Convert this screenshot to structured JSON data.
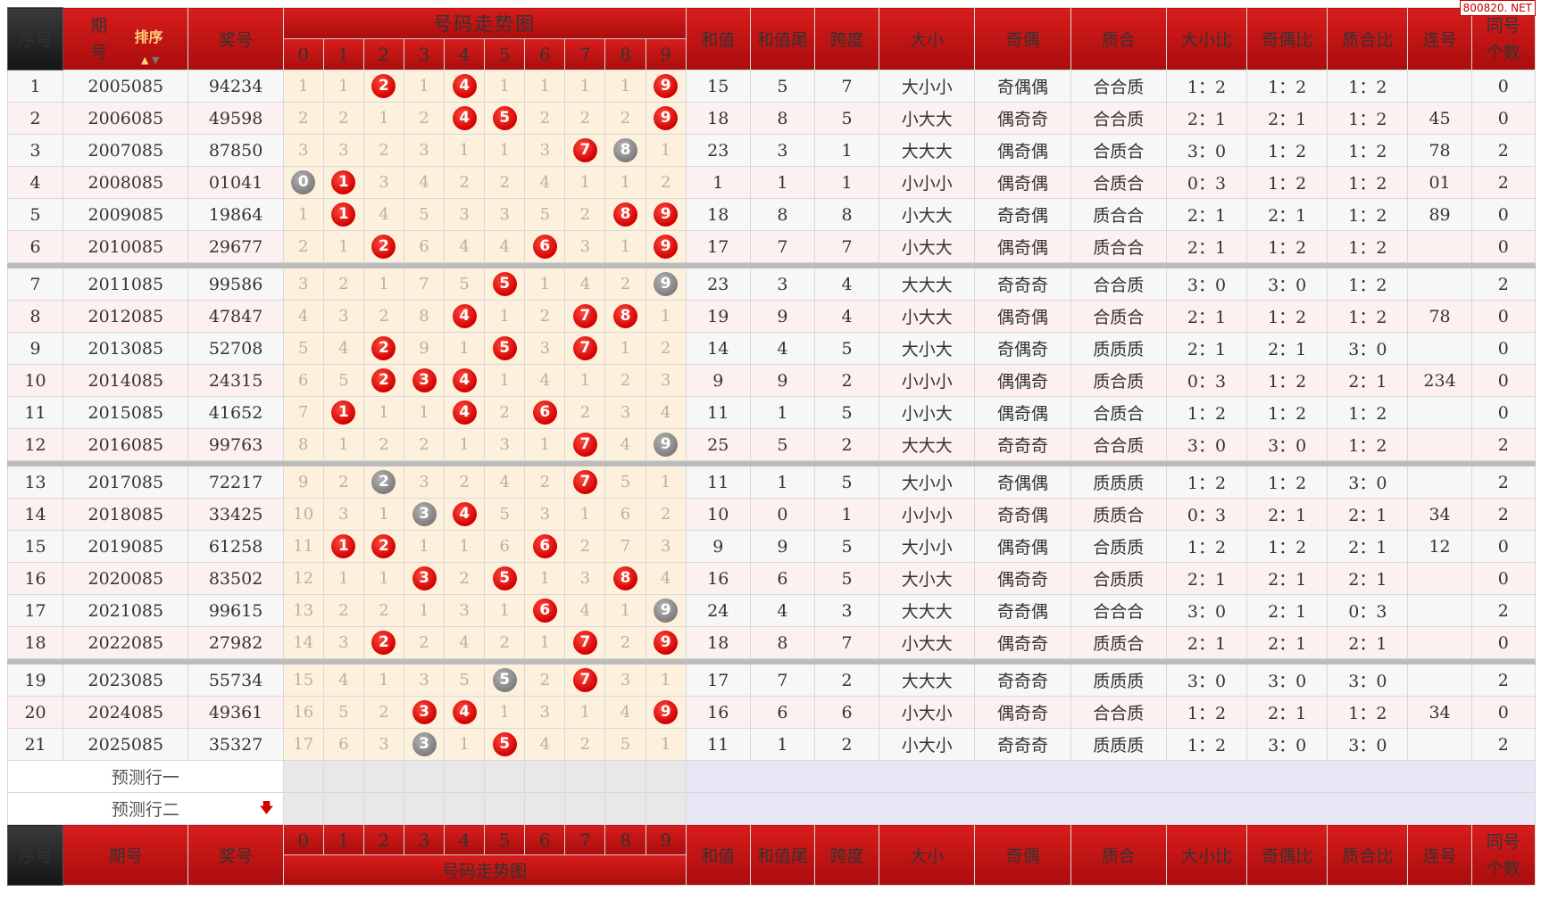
{
  "watermark": "800820. NET",
  "header": {
    "col_index": "序号",
    "col_issue_line1": "期",
    "col_issue_line2": "号",
    "sort_label": "排序",
    "col_prize": "奖号",
    "trend_title": "号码走势图",
    "digits": [
      "0",
      "1",
      "2",
      "3",
      "4",
      "5",
      "6",
      "7",
      "8",
      "9"
    ],
    "col_sum": "和值",
    "col_sum_tail": "和值尾",
    "col_span": "跨度",
    "col_size": "大小",
    "col_oddeven": "奇偶",
    "col_primecomp": "质合",
    "col_size_ratio": "大小比",
    "col_oddeven_ratio": "奇偶比",
    "col_primecomp_ratio": "质合比",
    "col_consecutive": "连号",
    "col_same_line1": "同号",
    "col_same_line2": "个数"
  },
  "footer": {
    "col_index": "序号",
    "col_issue": "期号",
    "col_prize": "奖号",
    "trend_title": "号码走势图"
  },
  "rows": [
    {
      "idx": "1",
      "issue": "2005085",
      "prize": "94234",
      "cells": [
        "1",
        "1",
        "2",
        "1",
        "4",
        "1",
        "1",
        "1",
        "1",
        "9"
      ],
      "hits": [
        {
          "d": 2,
          "c": "red"
        },
        {
          "d": 4,
          "c": "red"
        },
        {
          "d": 9,
          "c": "red"
        }
      ],
      "sum": "15",
      "tail": "5",
      "span": "7",
      "size": "大小小",
      "oe": "奇偶偶",
      "pc": "合合质",
      "sr": "1：2",
      "oer": "1：2",
      "pcr": "1：2",
      "cons": "",
      "same": "0"
    },
    {
      "idx": "2",
      "issue": "2006085",
      "prize": "49598",
      "cells": [
        "2",
        "2",
        "1",
        "2",
        "4",
        "5",
        "2",
        "2",
        "2",
        "9"
      ],
      "hits": [
        {
          "d": 4,
          "c": "red"
        },
        {
          "d": 5,
          "c": "red"
        },
        {
          "d": 9,
          "c": "red"
        }
      ],
      "sum": "18",
      "tail": "8",
      "span": "5",
      "size": "小大大",
      "oe": "偶奇奇",
      "pc": "合合质",
      "sr": "2：1",
      "oer": "2：1",
      "pcr": "1：2",
      "cons": "45",
      "same": "0"
    },
    {
      "idx": "3",
      "issue": "2007085",
      "prize": "87850",
      "cells": [
        "3",
        "3",
        "2",
        "3",
        "1",
        "1",
        "3",
        "7",
        "8",
        "1"
      ],
      "hits": [
        {
          "d": 7,
          "c": "red"
        },
        {
          "d": 8,
          "c": "gray"
        }
      ],
      "sum": "23",
      "tail": "3",
      "span": "1",
      "size": "大大大",
      "oe": "偶奇偶",
      "pc": "合质合",
      "sr": "3：0",
      "oer": "1：2",
      "pcr": "1：2",
      "cons": "78",
      "same": "2"
    },
    {
      "idx": "4",
      "issue": "2008085",
      "prize": "01041",
      "cells": [
        "0",
        "1",
        "3",
        "4",
        "2",
        "2",
        "4",
        "1",
        "1",
        "2"
      ],
      "hits": [
        {
          "d": 0,
          "c": "gray"
        },
        {
          "d": 1,
          "c": "red"
        }
      ],
      "sum": "1",
      "tail": "1",
      "span": "1",
      "size": "小小小",
      "oe": "偶奇偶",
      "pc": "合质合",
      "sr": "0：3",
      "oer": "1：2",
      "pcr": "1：2",
      "cons": "01",
      "same": "2"
    },
    {
      "idx": "5",
      "issue": "2009085",
      "prize": "19864",
      "cells": [
        "1",
        "1",
        "4",
        "5",
        "3",
        "3",
        "5",
        "2",
        "8",
        "9"
      ],
      "hits": [
        {
          "d": 1,
          "c": "red"
        },
        {
          "d": 8,
          "c": "red"
        },
        {
          "d": 9,
          "c": "red"
        }
      ],
      "sum": "18",
      "tail": "8",
      "span": "8",
      "size": "小大大",
      "oe": "奇奇偶",
      "pc": "质合合",
      "sr": "2：1",
      "oer": "2：1",
      "pcr": "1：2",
      "cons": "89",
      "same": "0"
    },
    {
      "idx": "6",
      "issue": "2010085",
      "prize": "29677",
      "cells": [
        "2",
        "1",
        "2",
        "6",
        "4",
        "4",
        "6",
        "3",
        "1",
        "9"
      ],
      "hits": [
        {
          "d": 2,
          "c": "red"
        },
        {
          "d": 6,
          "c": "red"
        },
        {
          "d": 9,
          "c": "red"
        }
      ],
      "sum": "17",
      "tail": "7",
      "span": "7",
      "size": "小大大",
      "oe": "偶奇偶",
      "pc": "质合合",
      "sr": "2：1",
      "oer": "1：2",
      "pcr": "1：2",
      "cons": "",
      "same": "0"
    },
    {
      "idx": "7",
      "issue": "2011085",
      "prize": "99586",
      "cells": [
        "3",
        "2",
        "1",
        "7",
        "5",
        "5",
        "1",
        "4",
        "2",
        "9"
      ],
      "hits": [
        {
          "d": 5,
          "c": "red"
        },
        {
          "d": 9,
          "c": "gray"
        }
      ],
      "sum": "23",
      "tail": "3",
      "span": "4",
      "size": "大大大",
      "oe": "奇奇奇",
      "pc": "合合质",
      "sr": "3：0",
      "oer": "3：0",
      "pcr": "1：2",
      "cons": "",
      "same": "2"
    },
    {
      "idx": "8",
      "issue": "2012085",
      "prize": "47847",
      "cells": [
        "4",
        "3",
        "2",
        "8",
        "4",
        "1",
        "2",
        "7",
        "8",
        "1"
      ],
      "hits": [
        {
          "d": 4,
          "c": "red"
        },
        {
          "d": 7,
          "c": "red"
        },
        {
          "d": 8,
          "c": "red"
        }
      ],
      "sum": "19",
      "tail": "9",
      "span": "4",
      "size": "小大大",
      "oe": "偶奇偶",
      "pc": "合质合",
      "sr": "2：1",
      "oer": "1：2",
      "pcr": "1：2",
      "cons": "78",
      "same": "0"
    },
    {
      "idx": "9",
      "issue": "2013085",
      "prize": "52708",
      "cells": [
        "5",
        "4",
        "2",
        "9",
        "1",
        "5",
        "3",
        "7",
        "1",
        "2"
      ],
      "hits": [
        {
          "d": 2,
          "c": "red"
        },
        {
          "d": 5,
          "c": "red"
        },
        {
          "d": 7,
          "c": "red"
        }
      ],
      "sum": "14",
      "tail": "4",
      "span": "5",
      "size": "大小大",
      "oe": "奇偶奇",
      "pc": "质质质",
      "sr": "2：1",
      "oer": "2：1",
      "pcr": "3：0",
      "cons": "",
      "same": "0"
    },
    {
      "idx": "10",
      "issue": "2014085",
      "prize": "24315",
      "cells": [
        "6",
        "5",
        "2",
        "3",
        "4",
        "1",
        "4",
        "1",
        "2",
        "3"
      ],
      "hits": [
        {
          "d": 2,
          "c": "red"
        },
        {
          "d": 3,
          "c": "red"
        },
        {
          "d": 4,
          "c": "red"
        }
      ],
      "sum": "9",
      "tail": "9",
      "span": "2",
      "size": "小小小",
      "oe": "偶偶奇",
      "pc": "质合质",
      "sr": "0：3",
      "oer": "1：2",
      "pcr": "2：1",
      "cons": "234",
      "same": "0"
    },
    {
      "idx": "11",
      "issue": "2015085",
      "prize": "41652",
      "cells": [
        "7",
        "1",
        "1",
        "1",
        "4",
        "2",
        "6",
        "2",
        "3",
        "4"
      ],
      "hits": [
        {
          "d": 1,
          "c": "red"
        },
        {
          "d": 4,
          "c": "red"
        },
        {
          "d": 6,
          "c": "red"
        }
      ],
      "sum": "11",
      "tail": "1",
      "span": "5",
      "size": "小小大",
      "oe": "偶奇偶",
      "pc": "合质合",
      "sr": "1：2",
      "oer": "1：2",
      "pcr": "1：2",
      "cons": "",
      "same": "0"
    },
    {
      "idx": "12",
      "issue": "2016085",
      "prize": "99763",
      "cells": [
        "8",
        "1",
        "2",
        "2",
        "1",
        "3",
        "1",
        "7",
        "4",
        "9"
      ],
      "hits": [
        {
          "d": 7,
          "c": "red"
        },
        {
          "d": 9,
          "c": "gray"
        }
      ],
      "sum": "25",
      "tail": "5",
      "span": "2",
      "size": "大大大",
      "oe": "奇奇奇",
      "pc": "合合质",
      "sr": "3：0",
      "oer": "3：0",
      "pcr": "1：2",
      "cons": "",
      "same": "2"
    },
    {
      "idx": "13",
      "issue": "2017085",
      "prize": "72217",
      "cells": [
        "9",
        "2",
        "2",
        "3",
        "2",
        "4",
        "2",
        "7",
        "5",
        "1"
      ],
      "hits": [
        {
          "d": 2,
          "c": "gray"
        },
        {
          "d": 7,
          "c": "red"
        }
      ],
      "sum": "11",
      "tail": "1",
      "span": "5",
      "size": "大小小",
      "oe": "奇偶偶",
      "pc": "质质质",
      "sr": "1：2",
      "oer": "1：2",
      "pcr": "3：0",
      "cons": "",
      "same": "2"
    },
    {
      "idx": "14",
      "issue": "2018085",
      "prize": "33425",
      "cells": [
        "10",
        "3",
        "1",
        "3",
        "4",
        "5",
        "3",
        "1",
        "6",
        "2"
      ],
      "hits": [
        {
          "d": 3,
          "c": "gray"
        },
        {
          "d": 4,
          "c": "red"
        }
      ],
      "sum": "10",
      "tail": "0",
      "span": "1",
      "size": "小小小",
      "oe": "奇奇偶",
      "pc": "质质合",
      "sr": "0：3",
      "oer": "2：1",
      "pcr": "2：1",
      "cons": "34",
      "same": "2"
    },
    {
      "idx": "15",
      "issue": "2019085",
      "prize": "61258",
      "cells": [
        "11",
        "1",
        "2",
        "1",
        "1",
        "6",
        "6",
        "2",
        "7",
        "3"
      ],
      "hits": [
        {
          "d": 1,
          "c": "red"
        },
        {
          "d": 2,
          "c": "red"
        },
        {
          "d": 6,
          "c": "red"
        }
      ],
      "sum": "9",
      "tail": "9",
      "span": "5",
      "size": "大小小",
      "oe": "偶奇偶",
      "pc": "合质质",
      "sr": "1：2",
      "oer": "1：2",
      "pcr": "2：1",
      "cons": "12",
      "same": "0"
    },
    {
      "idx": "16",
      "issue": "2020085",
      "prize": "83502",
      "cells": [
        "12",
        "1",
        "1",
        "3",
        "2",
        "5",
        "1",
        "3",
        "8",
        "4"
      ],
      "hits": [
        {
          "d": 3,
          "c": "red"
        },
        {
          "d": 5,
          "c": "red"
        },
        {
          "d": 8,
          "c": "red"
        }
      ],
      "sum": "16",
      "tail": "6",
      "span": "5",
      "size": "大小大",
      "oe": "偶奇奇",
      "pc": "合质质",
      "sr": "2：1",
      "oer": "2：1",
      "pcr": "2：1",
      "cons": "",
      "same": "0"
    },
    {
      "idx": "17",
      "issue": "2021085",
      "prize": "99615",
      "cells": [
        "13",
        "2",
        "2",
        "1",
        "3",
        "1",
        "6",
        "4",
        "1",
        "9"
      ],
      "hits": [
        {
          "d": 6,
          "c": "red"
        },
        {
          "d": 9,
          "c": "gray"
        }
      ],
      "sum": "24",
      "tail": "4",
      "span": "3",
      "size": "大大大",
      "oe": "奇奇偶",
      "pc": "合合合",
      "sr": "3：0",
      "oer": "2：1",
      "pcr": "0：3",
      "cons": "",
      "same": "2"
    },
    {
      "idx": "18",
      "issue": "2022085",
      "prize": "27982",
      "cells": [
        "14",
        "3",
        "2",
        "2",
        "4",
        "2",
        "1",
        "7",
        "2",
        "9"
      ],
      "hits": [
        {
          "d": 2,
          "c": "red"
        },
        {
          "d": 7,
          "c": "red"
        },
        {
          "d": 9,
          "c": "red"
        }
      ],
      "sum": "18",
      "tail": "8",
      "span": "7",
      "size": "小大大",
      "oe": "偶奇奇",
      "pc": "质质合",
      "sr": "2：1",
      "oer": "2：1",
      "pcr": "2：1",
      "cons": "",
      "same": "0"
    },
    {
      "idx": "19",
      "issue": "2023085",
      "prize": "55734",
      "cells": [
        "15",
        "4",
        "1",
        "3",
        "5",
        "5",
        "2",
        "7",
        "3",
        "1"
      ],
      "hits": [
        {
          "d": 5,
          "c": "gray"
        },
        {
          "d": 7,
          "c": "red"
        }
      ],
      "sum": "17",
      "tail": "7",
      "span": "2",
      "size": "大大大",
      "oe": "奇奇奇",
      "pc": "质质质",
      "sr": "3：0",
      "oer": "3：0",
      "pcr": "3：0",
      "cons": "",
      "same": "2"
    },
    {
      "idx": "20",
      "issue": "2024085",
      "prize": "49361",
      "cells": [
        "16",
        "5",
        "2",
        "3",
        "4",
        "1",
        "3",
        "1",
        "4",
        "9"
      ],
      "hits": [
        {
          "d": 3,
          "c": "red"
        },
        {
          "d": 4,
          "c": "red"
        },
        {
          "d": 9,
          "c": "red"
        }
      ],
      "sum": "16",
      "tail": "6",
      "span": "6",
      "size": "小大小",
      "oe": "偶奇奇",
      "pc": "合合质",
      "sr": "1：2",
      "oer": "2：1",
      "pcr": "1：2",
      "cons": "34",
      "same": "0"
    },
    {
      "idx": "21",
      "issue": "2025085",
      "prize": "35327",
      "cells": [
        "17",
        "6",
        "3",
        "3",
        "1",
        "5",
        "4",
        "2",
        "5",
        "1"
      ],
      "hits": [
        {
          "d": 3,
          "c": "gray"
        },
        {
          "d": 5,
          "c": "red"
        }
      ],
      "sum": "11",
      "tail": "1",
      "span": "2",
      "size": "小大小",
      "oe": "奇奇奇",
      "pc": "质质质",
      "sr": "1：2",
      "oer": "3：0",
      "pcr": "3：0",
      "cons": "",
      "same": "2"
    }
  ],
  "prediction_rows": [
    "预测行一",
    "预测行二"
  ],
  "colors": {
    "accent_red": "#d10000",
    "ball_gray": "#7d7d7d",
    "trend_cell_bg": "#fdf1dd"
  }
}
